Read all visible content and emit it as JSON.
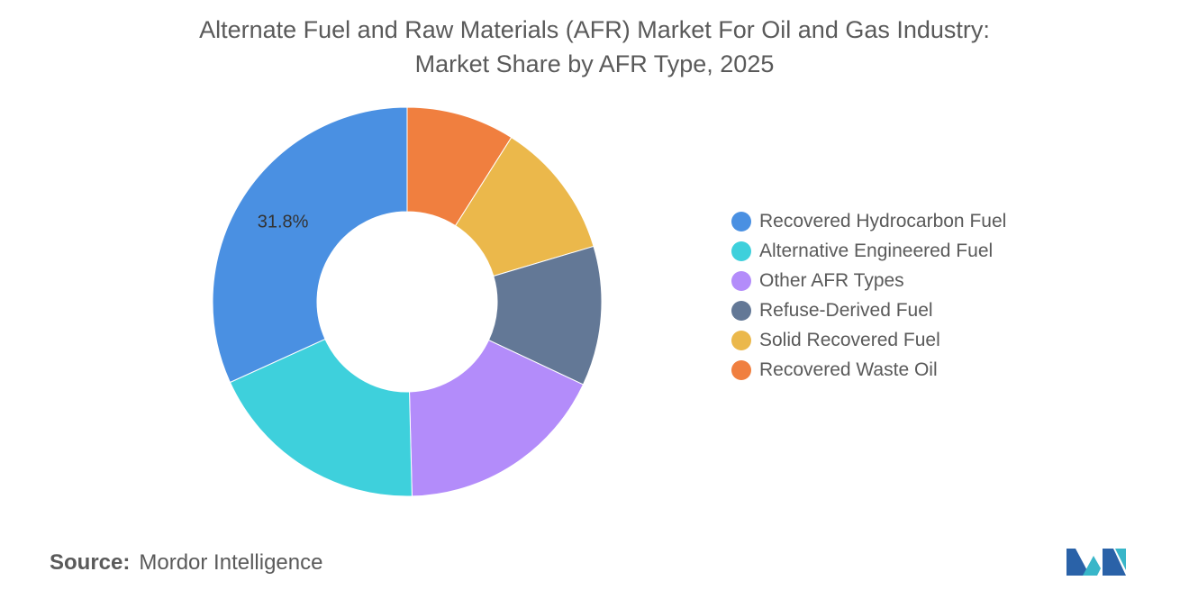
{
  "title": {
    "line1": "Alternate Fuel and Raw Materials (AFR) Market For Oil and Gas Industry:",
    "line2": "Market Share by AFR Type, 2025"
  },
  "chart_data": {
    "type": "pie",
    "donut": true,
    "start_angle_deg": 0,
    "direction": "clockwise",
    "slices": [
      {
        "label": "Recovered Waste Oil",
        "value": 9.0,
        "color": "#f07f3f"
      },
      {
        "label": "Solid Recovered Fuel",
        "value": 11.4,
        "color": "#ebb84b"
      },
      {
        "label": "Refuse-Derived Fuel",
        "value": 11.6,
        "color": "#637896"
      },
      {
        "label": "Other AFR Types",
        "value": 17.6,
        "color": "#b38cfa"
      },
      {
        "label": "Alternative Engineered Fuel",
        "value": 18.6,
        "color": "#3ed0dc"
      },
      {
        "label": "Recovered Hydrocarbon Fuel",
        "value": 31.8,
        "color": "#4a90e2"
      }
    ],
    "data_labels": [
      {
        "series": "Recovered Hydrocarbon Fuel",
        "text": "31.8%"
      }
    ],
    "legend": {
      "position": "right",
      "entries": [
        {
          "label": "Recovered Hydrocarbon Fuel",
          "color": "#4a90e2"
        },
        {
          "label": "Alternative Engineered Fuel",
          "color": "#3ed0dc"
        },
        {
          "label": "Other AFR Types",
          "color": "#b38cfa"
        },
        {
          "label": "Refuse-Derived Fuel",
          "color": "#637896"
        },
        {
          "label": "Solid Recovered Fuel",
          "color": "#ebb84b"
        },
        {
          "label": "Recovered Waste Oil",
          "color": "#f07f3f"
        }
      ]
    }
  },
  "source": {
    "key": "Source:",
    "value": "Mordor Intelligence"
  },
  "logo": {
    "icon": "mordor-intelligence-logo",
    "colors": [
      "#2a62a8",
      "#38b6c9"
    ]
  }
}
